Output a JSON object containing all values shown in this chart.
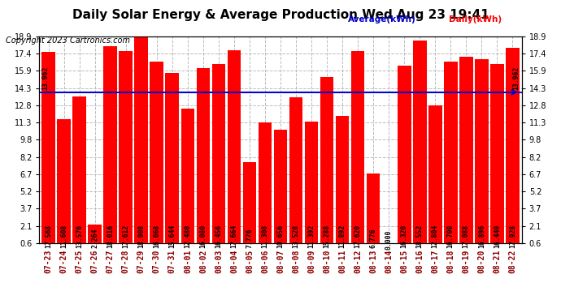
{
  "title": "Daily Solar Energy & Average Production Wed Aug 23 19:41",
  "copyright": "Copyright 2023 Cartronics.com",
  "legend_average": "Average(kWh)",
  "legend_daily": "Daily(kWh)",
  "average_value": 13.962,
  "categories": [
    "07-23",
    "07-24",
    "07-25",
    "07-26",
    "07-27",
    "07-28",
    "07-29",
    "07-30",
    "07-31",
    "08-01",
    "08-02",
    "08-03",
    "08-04",
    "08-05",
    "08-06",
    "08-07",
    "08-08",
    "08-09",
    "08-10",
    "08-11",
    "08-12",
    "08-13",
    "08-14",
    "08-15",
    "08-16",
    "08-17",
    "08-18",
    "08-19",
    "08-20",
    "08-21",
    "08-22"
  ],
  "values": [
    17.568,
    11.608,
    13.576,
    2.264,
    18.016,
    17.612,
    18.908,
    16.668,
    15.644,
    12.48,
    16.08,
    16.456,
    17.664,
    7.776,
    11.308,
    10.656,
    13.528,
    11.392,
    15.288,
    11.892,
    17.62,
    6.776,
    0.0,
    16.32,
    18.552,
    12.804,
    16.7,
    17.088,
    16.896,
    16.44,
    17.928
  ],
  "bar_color": "#ff0000",
  "avg_line_color": "#0000cd",
  "title_fontsize": 11,
  "copyright_fontsize": 7,
  "label_fontsize": 5.8,
  "tick_fontsize": 7,
  "ylim_min": 0.6,
  "ylim_max": 18.9,
  "yticks": [
    0.6,
    2.1,
    3.7,
    5.2,
    6.7,
    8.2,
    9.8,
    11.3,
    12.8,
    14.3,
    15.9,
    17.4,
    18.9
  ],
  "background_color": "#ffffff",
  "plot_bg_color": "#ffffff",
  "grid_color": "#bbbbbb"
}
